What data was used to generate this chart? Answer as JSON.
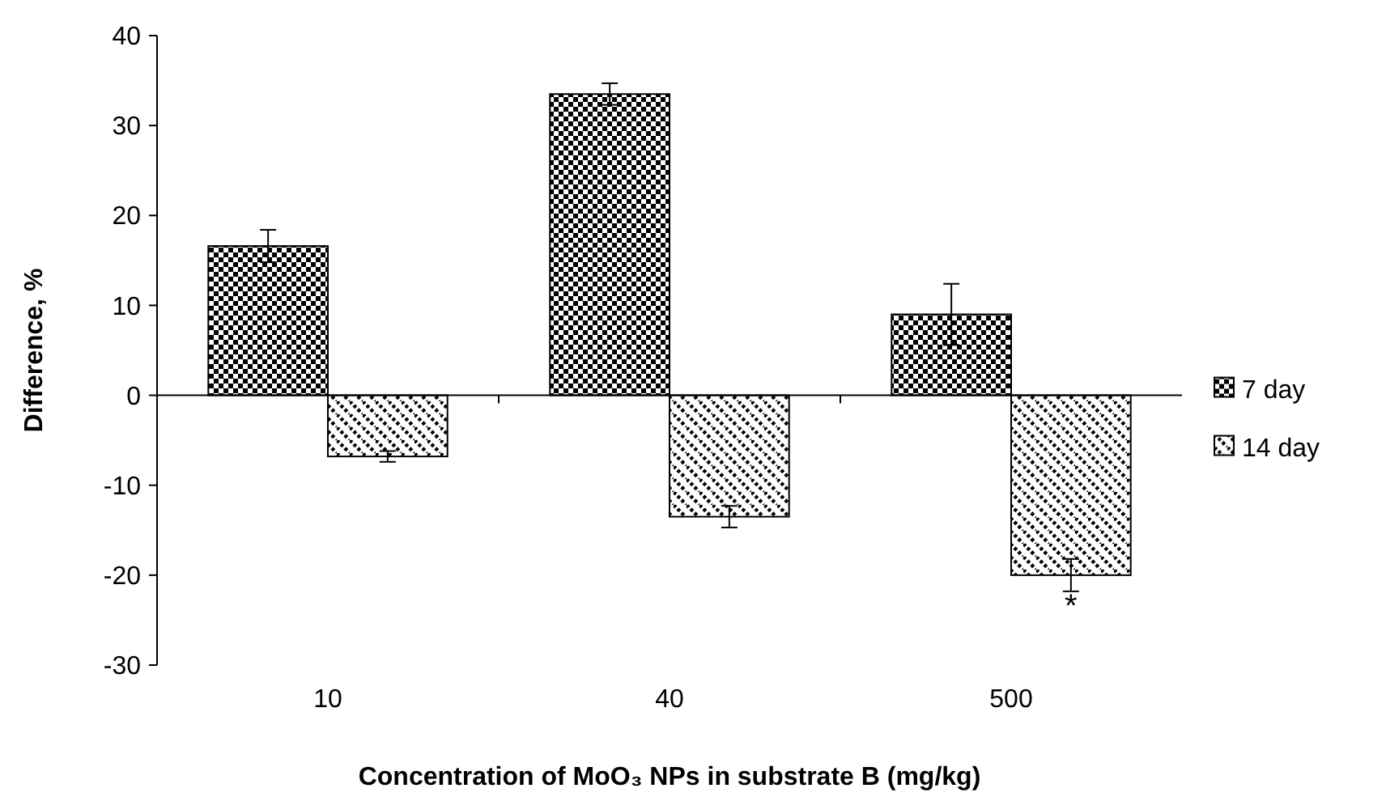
{
  "chart_data": {
    "type": "bar",
    "xlabel": "Concentration of MoO₃ NPs in substrate B (mg/kg)",
    "ylabel": "Difference, %",
    "categories": [
      "10",
      "40",
      "500"
    ],
    "series": [
      {
        "name": "7 day",
        "color": "#000000",
        "values": [
          16.6,
          33.5,
          9.0
        ],
        "errors": [
          1.8,
          1.2,
          3.4
        ]
      },
      {
        "name": "14 day",
        "color": "#000000",
        "values": [
          -6.8,
          -13.5,
          -20.0
        ],
        "errors": [
          0.6,
          1.2,
          1.8
        ]
      }
    ],
    "ylim": [
      -30,
      40
    ],
    "yticks": [
      -30,
      -20,
      -10,
      0,
      10,
      20,
      30,
      40
    ],
    "legend": "right",
    "annotations": [
      "*"
    ]
  }
}
